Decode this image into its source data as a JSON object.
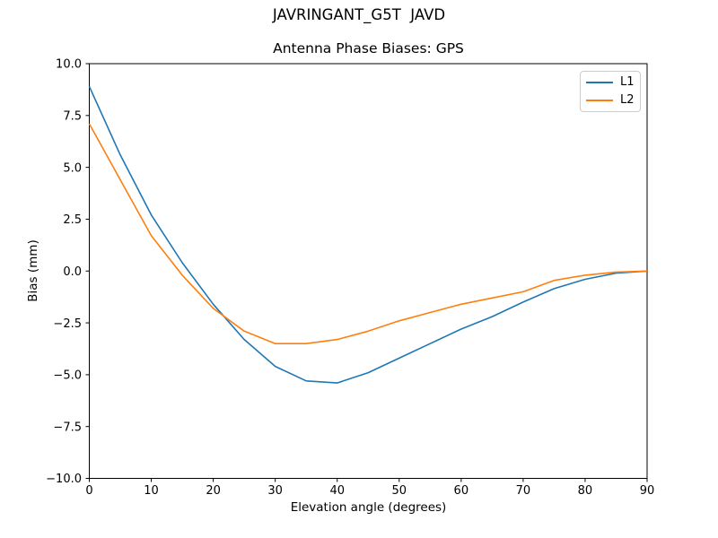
{
  "figure": {
    "background": "#ffffff",
    "text_color": "#000000",
    "spine_color": "#000000",
    "legend_border_color": "#cccccc"
  },
  "chart_data": {
    "type": "line",
    "title": "JAVRINGANT_G5T  JAVD",
    "subtitle": "Antenna Phase Biases: GPS",
    "xlabel": "Elevation angle (degrees)",
    "ylabel": "Bias (mm)",
    "xlim": [
      0,
      90
    ],
    "ylim": [
      -10,
      10
    ],
    "xticks": [
      0,
      10,
      20,
      30,
      40,
      50,
      60,
      70,
      80,
      90
    ],
    "yticks": [
      -10,
      -7.5,
      -5,
      -2.5,
      0,
      2.5,
      5,
      7.5,
      10
    ],
    "grid": false,
    "legend_position": "upper right",
    "x": [
      0,
      5,
      10,
      15,
      20,
      25,
      30,
      35,
      40,
      45,
      50,
      55,
      60,
      65,
      70,
      75,
      80,
      85,
      90
    ],
    "series": [
      {
        "name": "L1",
        "color": "#1f77b4",
        "values": [
          8.9,
          5.6,
          2.7,
          0.4,
          -1.6,
          -3.3,
          -4.6,
          -5.3,
          -5.4,
          -4.9,
          -4.2,
          -3.5,
          -2.8,
          -2.2,
          -1.5,
          -0.85,
          -0.4,
          -0.1,
          0.0
        ]
      },
      {
        "name": "L2",
        "color": "#ff7f0e",
        "values": [
          7.1,
          4.4,
          1.7,
          -0.2,
          -1.8,
          -2.9,
          -3.5,
          -3.5,
          -3.3,
          -2.9,
          -2.4,
          -2.0,
          -1.6,
          -1.3,
          -1.0,
          -0.45,
          -0.2,
          -0.05,
          0.0
        ]
      }
    ]
  }
}
